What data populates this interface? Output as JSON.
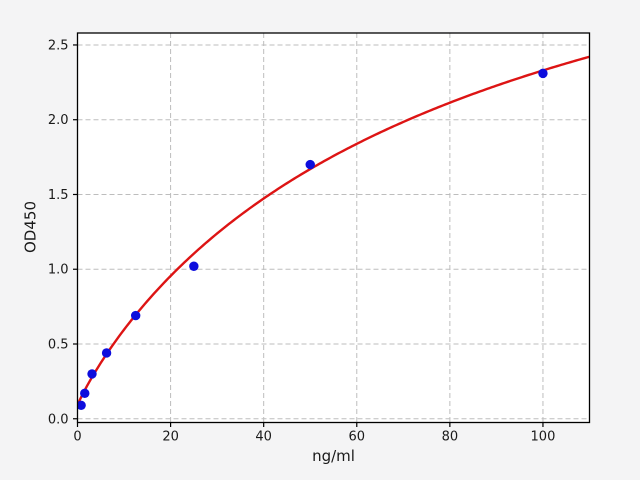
{
  "figure": {
    "background_color": "#f4f4f5",
    "plot_background_color": "#ffffff",
    "spine_color": "#000000",
    "grid_color": "#bdbdbd",
    "tick_label_color": "#1a1a1a",
    "xlabel": "ng/ml",
    "ylabel": "OD450"
  },
  "chart_data": {
    "type": "scatter",
    "title": "",
    "xlabel": "ng/ml",
    "ylabel": "OD450",
    "xlim": [
      0,
      110
    ],
    "ylim": [
      -0.025,
      2.58
    ],
    "grid": {
      "show": true,
      "style": "dashed"
    },
    "x_ticks": {
      "values": [
        0,
        20,
        40,
        60,
        80,
        100
      ],
      "labels": [
        "0",
        "20",
        "40",
        "60",
        "80",
        "100"
      ]
    },
    "y_ticks": {
      "values": [
        0,
        0.5,
        1.0,
        1.5,
        2.0,
        2.5
      ],
      "labels": [
        "0.0",
        "0.5",
        "1.0",
        "1.5",
        "2.0",
        "2.5"
      ]
    },
    "series": [
      {
        "name": "standard-points",
        "type": "scatter",
        "marker": "circle",
        "color": "#0d0ddd",
        "x": [
          0.78,
          1.56,
          3.12,
          6.25,
          12.5,
          25,
          50,
          100
        ],
        "y": [
          0.09,
          0.17,
          0.3,
          0.44,
          0.69,
          1.02,
          1.7,
          2.31
        ]
      },
      {
        "name": "fit-curve",
        "type": "line",
        "color": "#dd1414",
        "fit": "4PL",
        "params": {
          "a": 0.09,
          "b": 0.92,
          "c": 87.0,
          "d": 4.3
        },
        "x_range": [
          0,
          110
        ]
      }
    ]
  }
}
